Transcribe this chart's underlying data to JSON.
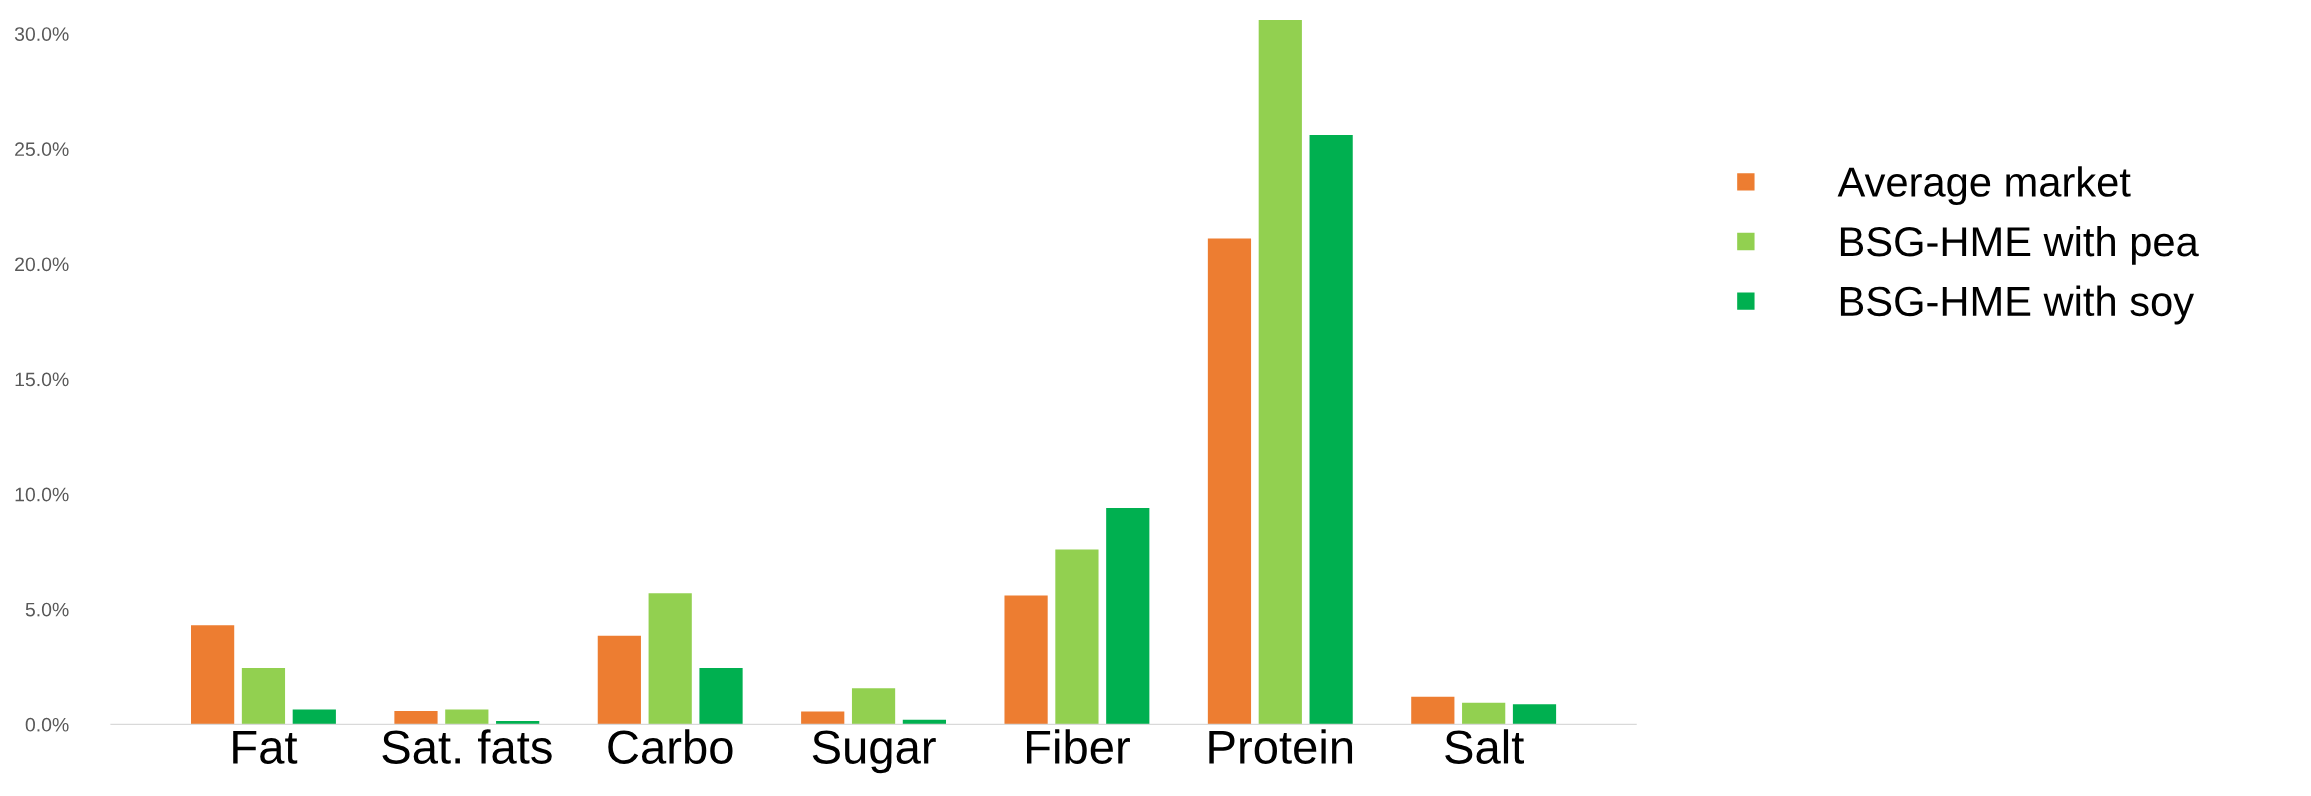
{
  "chart_data": {
    "type": "bar",
    "categories": [
      "Fat",
      "Sat. fats",
      "Carbo",
      "Sugar",
      "Fiber",
      "Protein",
      "Salt"
    ],
    "series": [
      {
        "name": "Average market",
        "color": "#ed7d31",
        "values": [
          4.3,
          0.58,
          3.85,
          0.56,
          5.6,
          21.1,
          1.2
        ]
      },
      {
        "name": "BSG-HME with pea",
        "color": "#92d050",
        "values": [
          2.45,
          0.65,
          5.7,
          1.57,
          7.6,
          30.6,
          0.94
        ]
      },
      {
        "name": "BSG-HME with soy",
        "color": "#00b050",
        "values": [
          0.65,
          0.15,
          2.45,
          0.2,
          9.4,
          25.6,
          0.87
        ]
      }
    ],
    "ylim": [
      0,
      30.6
    ],
    "yticks": [
      {
        "value": 0,
        "label": "0.0%"
      },
      {
        "value": 5,
        "label": "5.0%"
      },
      {
        "value": 10,
        "label": "10.0%"
      },
      {
        "value": 15,
        "label": "15.0%"
      },
      {
        "value": 20,
        "label": "20.0%"
      },
      {
        "value": 25,
        "label": "25.0%"
      },
      {
        "value": 30,
        "label": "30.0%"
      }
    ],
    "grid": false,
    "legend": "right"
  }
}
